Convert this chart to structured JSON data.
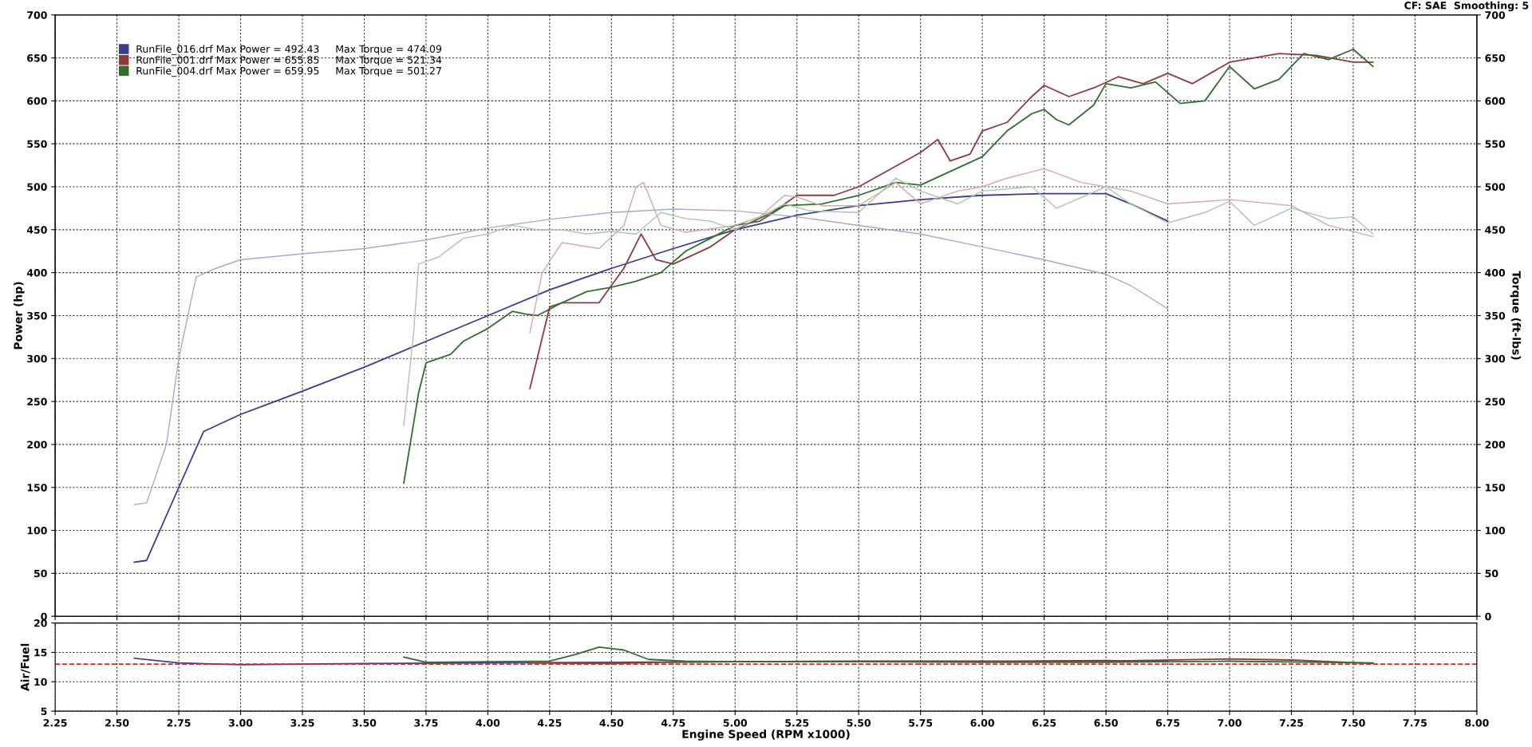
{
  "chart_data": [
    {
      "type": "line",
      "ylabel": "Power (hp)",
      "y2label": "Torque (ft-lbs)",
      "annotations": [
        "CF: SAE  Smoothing: 5"
      ],
      "xlim": [
        2.25,
        8.0
      ],
      "xticks": [
        2.25,
        2.5,
        2.75,
        3.0,
        3.25,
        3.5,
        3.75,
        4.0,
        4.25,
        4.5,
        4.75,
        5.0,
        5.25,
        5.5,
        5.75,
        6.0,
        6.25,
        6.5,
        6.75,
        7.0,
        7.25,
        7.5,
        7.75,
        8.0
      ],
      "ylim": [
        0,
        700
      ],
      "yticks": [
        0,
        50,
        100,
        150,
        200,
        250,
        300,
        350,
        400,
        450,
        500,
        550,
        600,
        650,
        700
      ],
      "y2lim": [
        0,
        700
      ],
      "y2ticks": [
        0,
        50,
        100,
        150,
        200,
        250,
        300,
        350,
        400,
        450,
        500,
        550,
        600,
        650,
        700
      ],
      "tick_labels": "y",
      "grid": true,
      "legend": "top left",
      "marker": "none",
      "line_style": "solid",
      "series": [
        {
          "name": "RunFile_016.drf Max Power = 492.43     Max Torque = 474.09",
          "color": "#3b3b8f",
          "x": [
            2.57,
            2.62,
            2.75,
            2.85,
            3.0,
            3.25,
            3.5,
            3.75,
            4.0,
            4.25,
            4.5,
            4.75,
            5.0,
            5.25,
            5.5,
            5.75,
            6.0,
            6.25,
            6.5,
            6.6,
            6.75
          ],
          "values": [
            63,
            65,
            150,
            215,
            235,
            262,
            290,
            320,
            350,
            380,
            405,
            428,
            450,
            467,
            478,
            485,
            490,
            492,
            492,
            480,
            460
          ]
        },
        {
          "name": "RunFile_001.drf Max Power = 655.85     Max Torque = 521.34",
          "color": "#8f3b3b",
          "x": [
            4.17,
            4.25,
            4.3,
            4.45,
            4.55,
            4.62,
            4.68,
            4.75,
            4.9,
            5.0,
            5.15,
            5.25,
            5.4,
            5.5,
            5.75,
            5.82,
            5.87,
            5.95,
            6.0,
            6.1,
            6.2,
            6.25,
            6.35,
            6.45,
            6.55,
            6.65,
            6.75,
            6.85,
            7.0,
            7.2,
            7.35,
            7.5,
            7.58
          ],
          "values": [
            265,
            360,
            365,
            365,
            405,
            445,
            415,
            410,
            430,
            450,
            470,
            490,
            490,
            500,
            540,
            555,
            530,
            538,
            565,
            575,
            605,
            618,
            605,
            615,
            628,
            620,
            632,
            620,
            645,
            655,
            653,
            645,
            645
          ]
        },
        {
          "name": "RunFile_004.drf Max Power = 659.95     Max Torque = 501.27",
          "color": "#2f6f2f",
          "x": [
            3.66,
            3.72,
            3.75,
            3.85,
            3.9,
            4.0,
            4.1,
            4.15,
            4.2,
            4.3,
            4.4,
            4.5,
            4.6,
            4.7,
            4.8,
            4.9,
            5.0,
            5.1,
            5.2,
            5.35,
            5.5,
            5.65,
            5.75,
            6.0,
            6.1,
            6.2,
            6.25,
            6.3,
            6.35,
            6.45,
            6.5,
            6.6,
            6.7,
            6.8,
            6.9,
            7.0,
            7.1,
            7.2,
            7.3,
            7.4,
            7.5,
            7.58
          ],
          "values": [
            155,
            260,
            295,
            305,
            320,
            335,
            355,
            352,
            350,
            365,
            378,
            383,
            390,
            400,
            425,
            440,
            455,
            460,
            478,
            480,
            490,
            505,
            502,
            535,
            565,
            585,
            590,
            578,
            572,
            595,
            620,
            615,
            622,
            597,
            600,
            640,
            614,
            625,
            655,
            648,
            660,
            640
          ]
        },
        {
          "axis": "y2",
          "color": "#a8a8cc",
          "x": [
            2.57,
            2.62,
            2.7,
            2.75,
            2.82,
            2.9,
            3.0,
            3.25,
            3.5,
            3.75,
            4.0,
            4.25,
            4.5,
            4.75,
            5.0,
            5.25,
            5.5,
            5.75,
            6.0,
            6.25,
            6.5,
            6.6,
            6.75
          ],
          "values": [
            130,
            132,
            200,
            300,
            395,
            405,
            415,
            422,
            428,
            438,
            452,
            462,
            470,
            474,
            472,
            465,
            455,
            445,
            430,
            415,
            398,
            385,
            358
          ]
        },
        {
          "axis": "y2",
          "color": "#d4a8a8",
          "x": [
            4.17,
            4.22,
            4.3,
            4.45,
            4.55,
            4.6,
            4.63,
            4.7,
            4.8,
            5.0,
            5.1,
            5.2,
            5.25,
            5.35,
            5.5,
            5.65,
            5.75,
            5.9,
            6.0,
            6.1,
            6.25,
            6.4,
            6.6,
            6.75,
            7.0,
            7.25,
            7.4,
            7.58
          ],
          "values": [
            330,
            400,
            435,
            428,
            455,
            500,
            505,
            455,
            447,
            455,
            465,
            490,
            488,
            478,
            478,
            505,
            480,
            495,
            500,
            510,
            521,
            505,
            495,
            480,
            485,
            478,
            455,
            442
          ]
        },
        {
          "axis": "y2",
          "color": "#a8c8a8",
          "x": [
            3.66,
            3.7,
            3.72,
            3.8,
            3.9,
            4.0,
            4.1,
            4.2,
            4.3,
            4.4,
            4.5,
            4.6,
            4.7,
            4.8,
            4.9,
            5.0,
            5.1,
            5.2,
            5.3,
            5.5,
            5.65,
            5.75,
            5.9,
            6.0,
            6.2,
            6.3,
            6.5,
            6.6,
            6.75,
            6.9,
            7.0,
            7.1,
            7.25,
            7.4,
            7.5,
            7.58
          ],
          "values": [
            222,
            330,
            410,
            418,
            440,
            445,
            455,
            450,
            450,
            445,
            448,
            445,
            470,
            463,
            460,
            450,
            465,
            480,
            472,
            470,
            510,
            495,
            480,
            495,
            500,
            475,
            500,
            480,
            458,
            470,
            483,
            455,
            475,
            463,
            465,
            445
          ]
        }
      ]
    },
    {
      "type": "line",
      "xlabel": "Engine Speed (RPM x1000)",
      "ylabel": "Air/Fuel",
      "xlim": [
        2.25,
        8.0
      ],
      "xticks": [
        {
          "value": 2.25,
          "label": "2.25"
        },
        {
          "value": 2.5,
          "label": "2.50"
        },
        {
          "value": 2.75,
          "label": "2.75"
        },
        {
          "value": 3.0,
          "label": "3.00"
        },
        {
          "value": 3.25,
          "label": "3.25"
        },
        {
          "value": 3.5,
          "label": "3.50"
        },
        {
          "value": 3.75,
          "label": "3.75"
        },
        {
          "value": 4.0,
          "label": "4.00"
        },
        {
          "value": 4.25,
          "label": "4.25"
        },
        {
          "value": 4.5,
          "label": "4.50"
        },
        {
          "value": 4.75,
          "label": "4.75"
        },
        {
          "value": 5.0,
          "label": "5.00"
        },
        {
          "value": 5.25,
          "label": "5.25"
        },
        {
          "value": 5.5,
          "label": "5.50"
        },
        {
          "value": 5.75,
          "label": "5.75"
        },
        {
          "value": 6.0,
          "label": "6.00"
        },
        {
          "value": 6.25,
          "label": "6.25"
        },
        {
          "value": 6.5,
          "label": "6.50"
        },
        {
          "value": 6.75,
          "label": "6.75"
        },
        {
          "value": 7.0,
          "label": "7.00"
        },
        {
          "value": 7.25,
          "label": "7.25"
        },
        {
          "value": 7.5,
          "label": "7.50"
        },
        {
          "value": 7.75,
          "label": "7.75"
        },
        {
          "value": 8.0,
          "label": "8.00"
        }
      ],
      "ylim": [
        5,
        20
      ],
      "yticks": [
        5,
        10,
        15,
        20
      ],
      "grid": true,
      "marker": "none",
      "line_style": "solid",
      "ref_lines": [
        {
          "axis": "y",
          "value": 13,
          "color": "#c03030",
          "line_style": "dashed"
        }
      ],
      "series": [
        {
          "color": "#3b3b8f",
          "x": [
            2.57,
            2.75,
            3.0,
            3.5,
            4.0,
            4.5,
            5.0,
            5.5,
            6.0,
            6.5,
            6.75
          ],
          "values": [
            14,
            13.2,
            12.9,
            13.1,
            13.2,
            13.3,
            13.4,
            13.5,
            13.5,
            13.6,
            13.4
          ]
        },
        {
          "color": "#8f3b3b",
          "x": [
            4.17,
            4.5,
            4.7,
            5.0,
            5.5,
            6.0,
            6.5,
            7.0,
            7.25,
            7.58
          ],
          "values": [
            13.2,
            13.1,
            13.3,
            13.4,
            13.4,
            13.4,
            13.5,
            13.9,
            13.7,
            13.1
          ]
        },
        {
          "color": "#2f6f2f",
          "x": [
            3.66,
            3.75,
            4.0,
            4.25,
            4.35,
            4.45,
            4.55,
            4.65,
            4.8,
            5.0,
            5.5,
            6.0,
            6.5,
            7.0,
            7.58
          ],
          "values": [
            14.2,
            13.3,
            13.4,
            13.5,
            14.6,
            15.9,
            15.4,
            13.8,
            13.5,
            13.4,
            13.4,
            13.3,
            13.3,
            13.5,
            13.2
          ]
        }
      ]
    }
  ]
}
